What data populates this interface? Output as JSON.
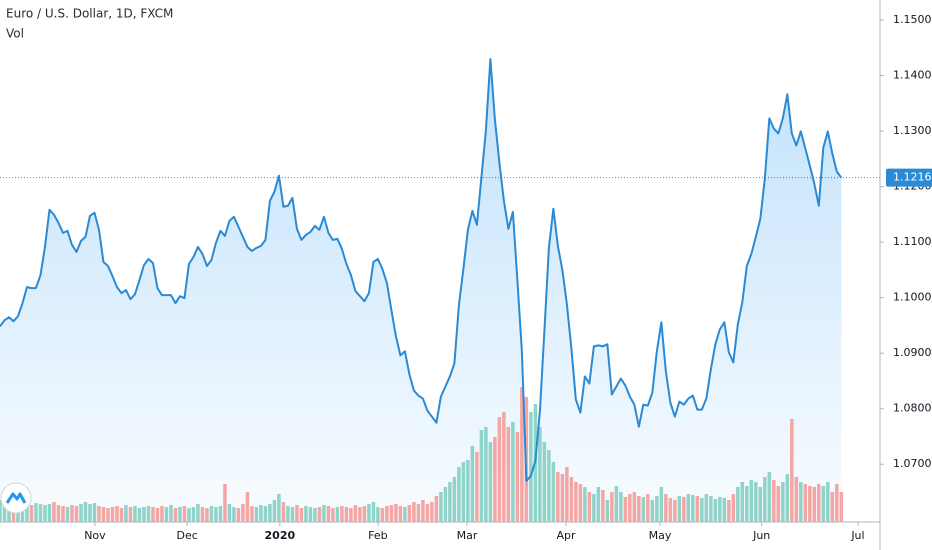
{
  "chart_data": {
    "type": "line",
    "title": "Euro / U.S. Dollar, 1D, FXCM",
    "series": [
      {
        "color": "#2a8ad4",
        "values": [
          1.09485,
          1.09593,
          1.09647,
          1.09575,
          1.09666,
          1.09901,
          1.1019,
          1.10172,
          1.10172,
          1.10407,
          1.10913,
          1.11582,
          1.11492,
          1.11347,
          1.11166,
          1.11203,
          1.10949,
          1.10823,
          1.11022,
          1.11094,
          1.11474,
          1.11528,
          1.11221,
          1.10642,
          1.1057,
          1.10389,
          1.1019,
          1.10081,
          1.10136,
          1.09973,
          1.10063,
          1.10316,
          1.10588,
          1.10696,
          1.10624,
          1.10172,
          1.10045,
          1.10045,
          1.10045,
          1.09901,
          1.10027,
          1.09991,
          1.10606,
          1.10732,
          1.10913,
          1.10787,
          1.1057,
          1.10678,
          1.10986,
          1.11203,
          1.11112,
          1.11383,
          1.11456,
          1.11275,
          1.11094,
          1.10913,
          1.10841,
          1.10895,
          1.10931,
          1.1104,
          1.11745,
          1.11908,
          1.12197,
          1.11637,
          1.11655,
          1.11799,
          1.11239,
          1.1104,
          1.1113,
          1.11184,
          1.11293,
          1.11221,
          1.11456,
          1.11166,
          1.1104,
          1.11058,
          1.10877,
          1.10606,
          1.10407,
          1.10118,
          1.10027,
          1.09937,
          1.10081,
          1.10642,
          1.10696,
          1.10515,
          1.10262,
          1.09774,
          1.09304,
          1.0896,
          1.09033,
          1.08617,
          1.08327,
          1.08237,
          1.08183,
          1.07966,
          1.07857,
          1.07749,
          1.08219,
          1.084,
          1.08581,
          1.08816,
          1.09864,
          1.10515,
          1.11221,
          1.11564,
          1.11311,
          1.12161,
          1.13011,
          1.14295,
          1.1321,
          1.12432,
          1.11745,
          1.11239,
          1.11546,
          1.10316,
          1.09033,
          1.067,
          1.0679,
          1.07062,
          1.07948,
          1.09394,
          1.10895,
          1.116,
          1.10931,
          1.10497,
          1.09883,
          1.09087,
          1.08165,
          1.0793,
          1.08581,
          1.08454,
          1.09123,
          1.09141,
          1.09123,
          1.09159,
          1.08255,
          1.084,
          1.08544,
          1.08418,
          1.08219,
          1.08074,
          1.07676,
          1.08074,
          1.08056,
          1.08291,
          1.09033,
          1.09557,
          1.08671,
          1.0811,
          1.07857,
          1.08128,
          1.08074,
          1.08183,
          1.08237,
          1.07984,
          1.07984,
          1.08183,
          1.08707,
          1.09159,
          1.0943,
          1.09557,
          1.09015,
          1.08834,
          1.09521,
          1.09919,
          1.1057,
          1.10787,
          1.11094,
          1.1142,
          1.12143,
          1.13228,
          1.13047,
          1.12957,
          1.13228,
          1.13662,
          1.12957,
          1.1274,
          1.12993,
          1.12685,
          1.12378,
          1.12052,
          1.11655,
          1.12703,
          1.12993,
          1.12595,
          1.12269,
          1.12162
        ]
      }
    ],
    "volume": {
      "type": "bar",
      "name": "Vol",
      "up_color": "#8fd3c9",
      "down_color": "#f4a6a4",
      "values": [
        22,
        18,
        16,
        18,
        17,
        16,
        18,
        17,
        19,
        18,
        17,
        18,
        20,
        17,
        16,
        15,
        17,
        16,
        18,
        20,
        18,
        19,
        16,
        15,
        14,
        15,
        16,
        14,
        17,
        15,
        16,
        14,
        15,
        16,
        15,
        14,
        16,
        15,
        17,
        14,
        15,
        16,
        14,
        15,
        18,
        15,
        14,
        16,
        15,
        16,
        38,
        18,
        15,
        14,
        18,
        30,
        16,
        15,
        17,
        16,
        18,
        22,
        28,
        20,
        16,
        15,
        17,
        14,
        16,
        15,
        14,
        15,
        17,
        16,
        14,
        15,
        16,
        15,
        14,
        17,
        15,
        16,
        18,
        20,
        15,
        14,
        16,
        17,
        18,
        16,
        15,
        17,
        20,
        18,
        22,
        18,
        20,
        26,
        30,
        35,
        40,
        45,
        55,
        60,
        62,
        76,
        70,
        92,
        95,
        80,
        85,
        105,
        110,
        95,
        100,
        90,
        135,
        125,
        110,
        118,
        95,
        80,
        72,
        60,
        50,
        48,
        55,
        45,
        40,
        38,
        35,
        30,
        28,
        35,
        32,
        22,
        30,
        36,
        30,
        25,
        28,
        30,
        26,
        25,
        28,
        22,
        26,
        35,
        28,
        24,
        22,
        26,
        25,
        28,
        27,
        26,
        24,
        28,
        26,
        23,
        25,
        24,
        22,
        28,
        35,
        40,
        36,
        42,
        40,
        35,
        45,
        50,
        42,
        36,
        40,
        48,
        103,
        45,
        40,
        38,
        36,
        35,
        38,
        36,
        40,
        30,
        38,
        30
      ]
    },
    "ylim": [
      1.0596,
      1.1536
    ],
    "yticks": [
      {
        "value": 1.07,
        "label": "1.07000"
      },
      {
        "value": 1.08,
        "label": "1.08000"
      },
      {
        "value": 1.09,
        "label": "1.09000"
      },
      {
        "value": 1.1,
        "label": "1.10000"
      },
      {
        "value": 1.11,
        "label": "1.11000"
      },
      {
        "value": 1.12,
        "label": "1.12000"
      },
      {
        "value": 1.13,
        "label": "1.13000"
      },
      {
        "value": 1.14,
        "label": "1.14000"
      },
      {
        "value": 1.15,
        "label": "1.15000"
      }
    ],
    "xlim": [
      0,
      195.6
    ],
    "xticks": [
      {
        "value": 21.1,
        "label": "Nov"
      },
      {
        "value": 41.6,
        "label": "Dec"
      },
      {
        "value": 62.2,
        "label": "2020"
      },
      {
        "value": 84,
        "label": "Feb"
      },
      {
        "value": 103.8,
        "label": "Mar"
      },
      {
        "value": 125.8,
        "label": "Apr"
      },
      {
        "value": 146.7,
        "label": "May"
      },
      {
        "value": 169.3,
        "label": "Jun"
      },
      {
        "value": 190.7,
        "label": "Jul"
      }
    ],
    "grid": false
  }
}
